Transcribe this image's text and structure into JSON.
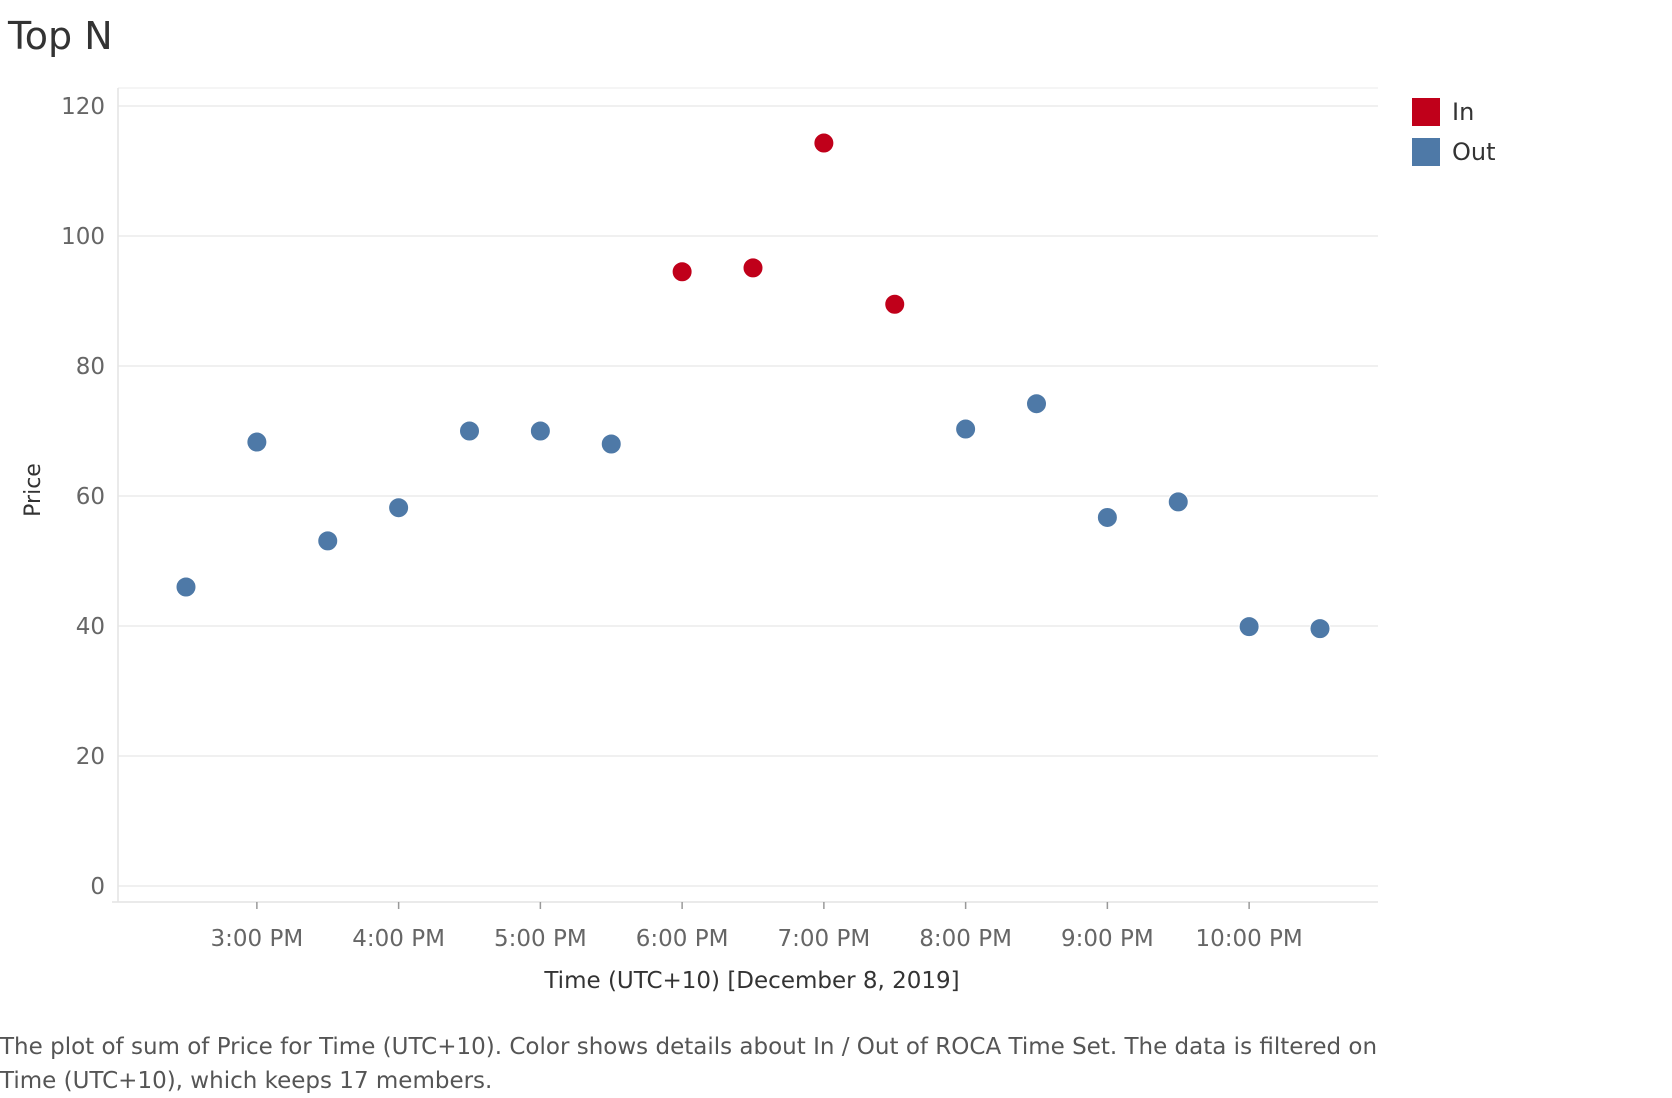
{
  "title": "Top N",
  "caption_line1": "The plot of sum of Price for Time (UTC+10).  Color shows details about In / Out of ROCA Time Set. The data is filtered on",
  "caption_line2": "Time (UTC+10), which keeps 17 members.",
  "legend": [
    {
      "label": "In",
      "color": "#c0001a"
    },
    {
      "label": "Out",
      "color": "#4e79a7"
    }
  ],
  "chart_data": {
    "type": "scatter",
    "xlabel": "Time (UTC+10) [December 8, 2019]",
    "ylabel": "Price",
    "ylim": [
      0,
      120
    ],
    "yticks": [
      0,
      20,
      40,
      60,
      80,
      100,
      120
    ],
    "xlim": [
      "2:30 PM",
      "10:30 PM"
    ],
    "xticks": [
      "3:00 PM",
      "4:00 PM",
      "5:00 PM",
      "6:00 PM",
      "7:00 PM",
      "8:00 PM",
      "9:00 PM",
      "10:00 PM"
    ],
    "grid": true,
    "legend_position": "top-right",
    "points": [
      {
        "x": "2:30 PM",
        "y": 46,
        "group": "Out"
      },
      {
        "x": "3:00 PM",
        "y": 68.3,
        "group": "Out"
      },
      {
        "x": "3:30 PM",
        "y": 53.1,
        "group": "Out"
      },
      {
        "x": "4:00 PM",
        "y": 58.2,
        "group": "Out"
      },
      {
        "x": "4:30 PM",
        "y": 70,
        "group": "Out"
      },
      {
        "x": "5:00 PM",
        "y": 70,
        "group": "Out"
      },
      {
        "x": "5:30 PM",
        "y": 68,
        "group": "Out"
      },
      {
        "x": "6:00 PM",
        "y": 94.5,
        "group": "In"
      },
      {
        "x": "6:30 PM",
        "y": 95.1,
        "group": "In"
      },
      {
        "x": "7:00 PM",
        "y": 114.3,
        "group": "In"
      },
      {
        "x": "7:30 PM",
        "y": 89.5,
        "group": "In"
      },
      {
        "x": "8:00 PM",
        "y": 70.3,
        "group": "Out"
      },
      {
        "x": "8:30 PM",
        "y": 74.2,
        "group": "Out"
      },
      {
        "x": "9:00 PM",
        "y": 56.7,
        "group": "Out"
      },
      {
        "x": "9:30 PM",
        "y": 59.1,
        "group": "Out"
      },
      {
        "x": "10:00 PM",
        "y": 39.9,
        "group": "Out"
      },
      {
        "x": "10:30 PM",
        "y": 39.6,
        "group": "Out"
      }
    ]
  }
}
